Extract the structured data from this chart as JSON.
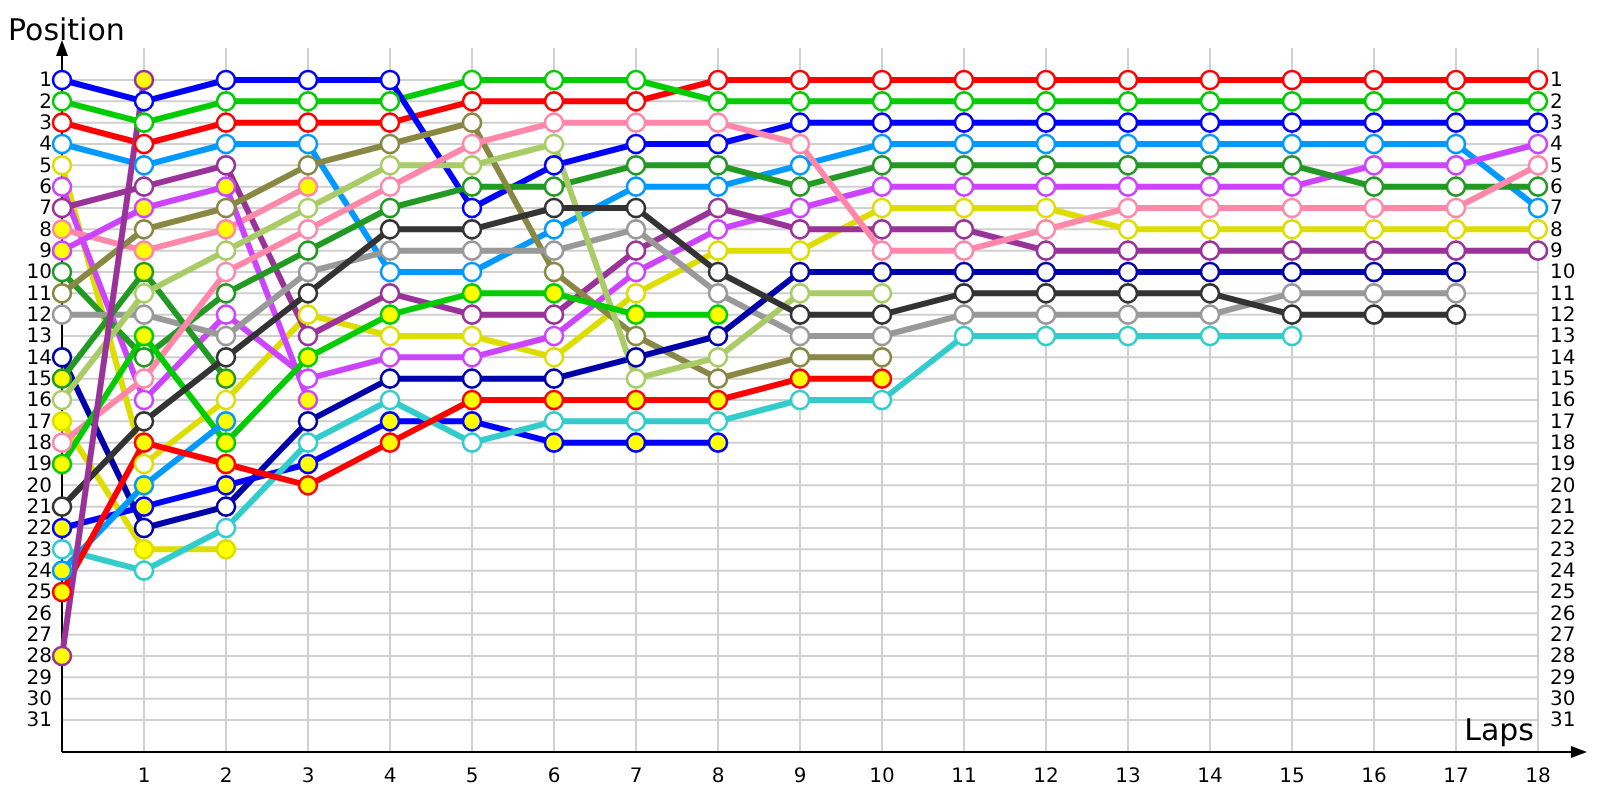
{
  "chart_data": {
    "type": "line",
    "ylabel": "Position",
    "xlabel": "Laps",
    "marker": "circle",
    "grid": true,
    "x": [
      0,
      1,
      2,
      3,
      4,
      5,
      6,
      7,
      8,
      9,
      10,
      11,
      12,
      13,
      14,
      15,
      16,
      17,
      18
    ],
    "xlim": [
      0,
      18.5
    ],
    "xticks": [
      1,
      2,
      3,
      4,
      5,
      6,
      7,
      8,
      9,
      10,
      11,
      12,
      13,
      14,
      15,
      16,
      17,
      18
    ],
    "ylim": [
      32.5,
      -0.5
    ],
    "yticks": [
      1,
      2,
      3,
      4,
      5,
      6,
      7,
      8,
      9,
      10,
      11,
      12,
      13,
      14,
      15,
      16,
      17,
      18,
      19,
      20,
      21,
      22,
      23,
      24,
      25,
      26,
      27,
      28,
      29,
      30,
      31
    ],
    "y2lim": [
      32.5,
      -0.5
    ],
    "y2ticks": [
      1,
      2,
      3,
      4,
      5,
      6,
      7,
      8,
      9,
      10,
      11,
      12,
      13,
      14,
      15,
      16,
      17,
      18,
      19,
      20,
      21,
      22,
      23,
      24,
      25,
      26,
      27,
      28,
      29,
      30,
      31
    ],
    "series": [
      {
        "color": "#ff0000",
        "values": [
          3,
          4,
          3,
          3,
          3,
          2,
          2,
          2,
          1,
          1,
          1,
          1,
          1,
          1,
          1,
          1,
          1,
          1,
          1
        ]
      },
      {
        "color": "#00cc00",
        "values": [
          2,
          3,
          2,
          2,
          2,
          1,
          1,
          1,
          2,
          2,
          2,
          2,
          2,
          2,
          2,
          2,
          2,
          2,
          2
        ]
      },
      {
        "color": "#0000ff",
        "values": [
          1,
          2,
          1,
          1,
          1,
          7,
          5,
          4,
          4,
          3,
          3,
          3,
          3,
          3,
          3,
          3,
          3,
          3,
          3
        ]
      },
      {
        "color": "#0099ff",
        "values": [
          4,
          5,
          4,
          4,
          10,
          10,
          8,
          6,
          6,
          5,
          4,
          4,
          4,
          4,
          4,
          4,
          4,
          4,
          7
        ]
      },
      {
        "color": "#dddd00",
        "values": [
          5,
          19,
          16,
          12,
          13,
          13,
          14,
          11,
          9,
          9,
          7,
          7,
          7,
          8,
          8,
          8,
          8,
          8,
          8
        ]
      },
      {
        "color": "#cc44ff",
        "values": [
          6,
          16,
          12,
          15,
          14,
          14,
          13,
          10,
          8,
          7,
          6,
          6,
          6,
          6,
          6,
          6,
          5,
          5,
          4
        ]
      },
      {
        "color": "#993399",
        "values": [
          7,
          6,
          5,
          13,
          11,
          12,
          12,
          9,
          7,
          8,
          8,
          8,
          9,
          9,
          9,
          9,
          9,
          9,
          9
        ]
      },
      {
        "color": "#ff88aa",
        "values": [
          8,
          9,
          8,
          6,
          null,
          null,
          null,
          null,
          null,
          null,
          null,
          null,
          null,
          null,
          null,
          null,
          null,
          null,
          null
        ],
        "colors": [
          "#ffff00",
          "#ffff00",
          "#ffff00",
          "#ffff00",
          null,
          null,
          null,
          null,
          null,
          null,
          null,
          null,
          null,
          null,
          null,
          null,
          null,
          null,
          null
        ]
      },
      {
        "color": "#cc44ff",
        "values": [
          9,
          7,
          6,
          16,
          null,
          null,
          null,
          null,
          null,
          null,
          null,
          null,
          null,
          null,
          null,
          null,
          null,
          null,
          null
        ],
        "colors": [
          "#ffff00",
          "#ffff00",
          "#ffff00",
          "#ffff00",
          null,
          null,
          null,
          null,
          null,
          null,
          null,
          null,
          null,
          null,
          null,
          null,
          null,
          null,
          null
        ]
      },
      {
        "color": "#229922",
        "values": [
          10,
          14,
          11,
          9,
          7,
          6,
          6,
          5,
          5,
          6,
          5,
          5,
          5,
          5,
          5,
          5,
          6,
          6,
          6
        ]
      },
      {
        "color": "#888844",
        "values": [
          11,
          8,
          7,
          5,
          4,
          3,
          10,
          13,
          15,
          14,
          14,
          null,
          null,
          null,
          null,
          null,
          null,
          null,
          null
        ]
      },
      {
        "color": "#999999",
        "values": [
          12,
          12,
          13,
          10,
          9,
          9,
          9,
          8,
          11,
          13,
          13,
          12,
          12,
          12,
          12,
          11,
          11,
          11,
          null
        ]
      },
      {
        "color": "#0000aa",
        "values": [
          14,
          22,
          21,
          17,
          15,
          15,
          15,
          14,
          13,
          10,
          10,
          10,
          10,
          10,
          10,
          10,
          10,
          10,
          null
        ]
      },
      {
        "color": "#229922",
        "values": [
          15,
          10,
          15,
          null,
          null,
          null,
          null,
          null,
          null,
          null,
          null,
          null,
          null,
          null,
          null,
          null,
          null,
          null,
          null
        ],
        "colors": [
          "#ffff00",
          "#ffff00",
          "#ffff00",
          null,
          null,
          null,
          null,
          null,
          null,
          null,
          null,
          null,
          null,
          null,
          null,
          null,
          null,
          null,
          null
        ]
      },
      {
        "color": "#aacc66",
        "values": [
          16,
          11,
          9,
          7,
          5,
          5,
          4,
          15,
          14,
          11,
          11,
          null,
          null,
          null,
          null,
          null,
          null,
          null,
          null
        ]
      },
      {
        "color": "#dddd00",
        "values": [
          17,
          23,
          23,
          null,
          null,
          null,
          null,
          null,
          null,
          null,
          null,
          null,
          null,
          null,
          null,
          null,
          null,
          null,
          null
        ],
        "colors": [
          "#ffff00",
          "#ffff00",
          "#ffff00",
          null,
          null,
          null,
          null,
          null,
          null,
          null,
          null,
          null,
          null,
          null,
          null,
          null,
          null,
          null,
          null
        ]
      },
      {
        "color": "#ff88aa",
        "values": [
          18,
          15,
          10,
          8,
          6,
          4,
          3,
          3,
          3,
          4,
          9,
          9,
          8,
          7,
          7,
          7,
          7,
          7,
          5
        ]
      },
      {
        "color": "#00cc00",
        "values": [
          19,
          13,
          18,
          14,
          12,
          11,
          11,
          12,
          12,
          null,
          null,
          null,
          null,
          null,
          null,
          null,
          null,
          null,
          null
        ],
        "colors": [
          "#ffff00",
          "#ffff00",
          "#ffff00",
          "#ffff00",
          "#ffff00",
          "#ffff00",
          "#ffff00",
          "#ffff00",
          "#ffff00",
          null,
          null,
          null,
          null,
          null,
          null,
          null,
          null,
          null,
          null
        ]
      },
      {
        "color": "#333333",
        "values": [
          21,
          17,
          14,
          11,
          8,
          8,
          7,
          7,
          10,
          12,
          12,
          11,
          11,
          11,
          11,
          12,
          12,
          12,
          null
        ]
      },
      {
        "color": "#0000ff",
        "values": [
          22,
          21,
          20,
          19,
          17,
          17,
          18,
          18,
          18,
          null,
          null,
          null,
          null,
          null,
          null,
          null,
          null,
          null,
          null
        ],
        "colors": [
          "#ffff00",
          "#ffff00",
          "#ffff00",
          "#ffff00",
          "#ffff00",
          "#ffff00",
          "#ffff00",
          "#ffff00",
          "#ffff00",
          null,
          null,
          null,
          null,
          null,
          null,
          null,
          null,
          null,
          null
        ]
      },
      {
        "color": "#33cccc",
        "values": [
          23,
          24,
          22,
          18,
          16,
          18,
          17,
          17,
          17,
          16,
          16,
          13,
          13,
          13,
          13,
          13,
          null,
          null,
          null
        ]
      },
      {
        "color": "#0099ff",
        "values": [
          24,
          20,
          17,
          null,
          null,
          null,
          null,
          null,
          null,
          null,
          null,
          null,
          null,
          null,
          null,
          null,
          null,
          null,
          null
        ],
        "colors": [
          "#ffff00",
          "#ffff00",
          "#ffff00",
          null,
          null,
          null,
          null,
          null,
          null,
          null,
          null,
          null,
          null,
          null,
          null,
          null,
          null,
          null,
          null
        ]
      },
      {
        "color": "#ff0000",
        "values": [
          25,
          18,
          19,
          20,
          18,
          16,
          16,
          16,
          16,
          15,
          15,
          null,
          null,
          null,
          null,
          null,
          null,
          null,
          null
        ],
        "colors": [
          "#ffff00",
          "#ffff00",
          "#ffff00",
          "#ffff00",
          "#ffff00",
          "#ffff00",
          "#ffff00",
          "#ffff00",
          "#ffff00",
          "#ffff00",
          "#ffff00",
          null,
          null,
          null,
          null,
          null,
          null,
          null,
          null
        ]
      },
      {
        "color": "#993399",
        "values": [
          28,
          1,
          null,
          null,
          null,
          null,
          null,
          null,
          null,
          null,
          null,
          null,
          null,
          null,
          null,
          null,
          null,
          null,
          null
        ],
        "colors": [
          "#ffff00",
          "#ffff00",
          null,
          null,
          null,
          null,
          null,
          null,
          null,
          null,
          null,
          null,
          null,
          null,
          null,
          null,
          null,
          null,
          null
        ]
      }
    ]
  }
}
